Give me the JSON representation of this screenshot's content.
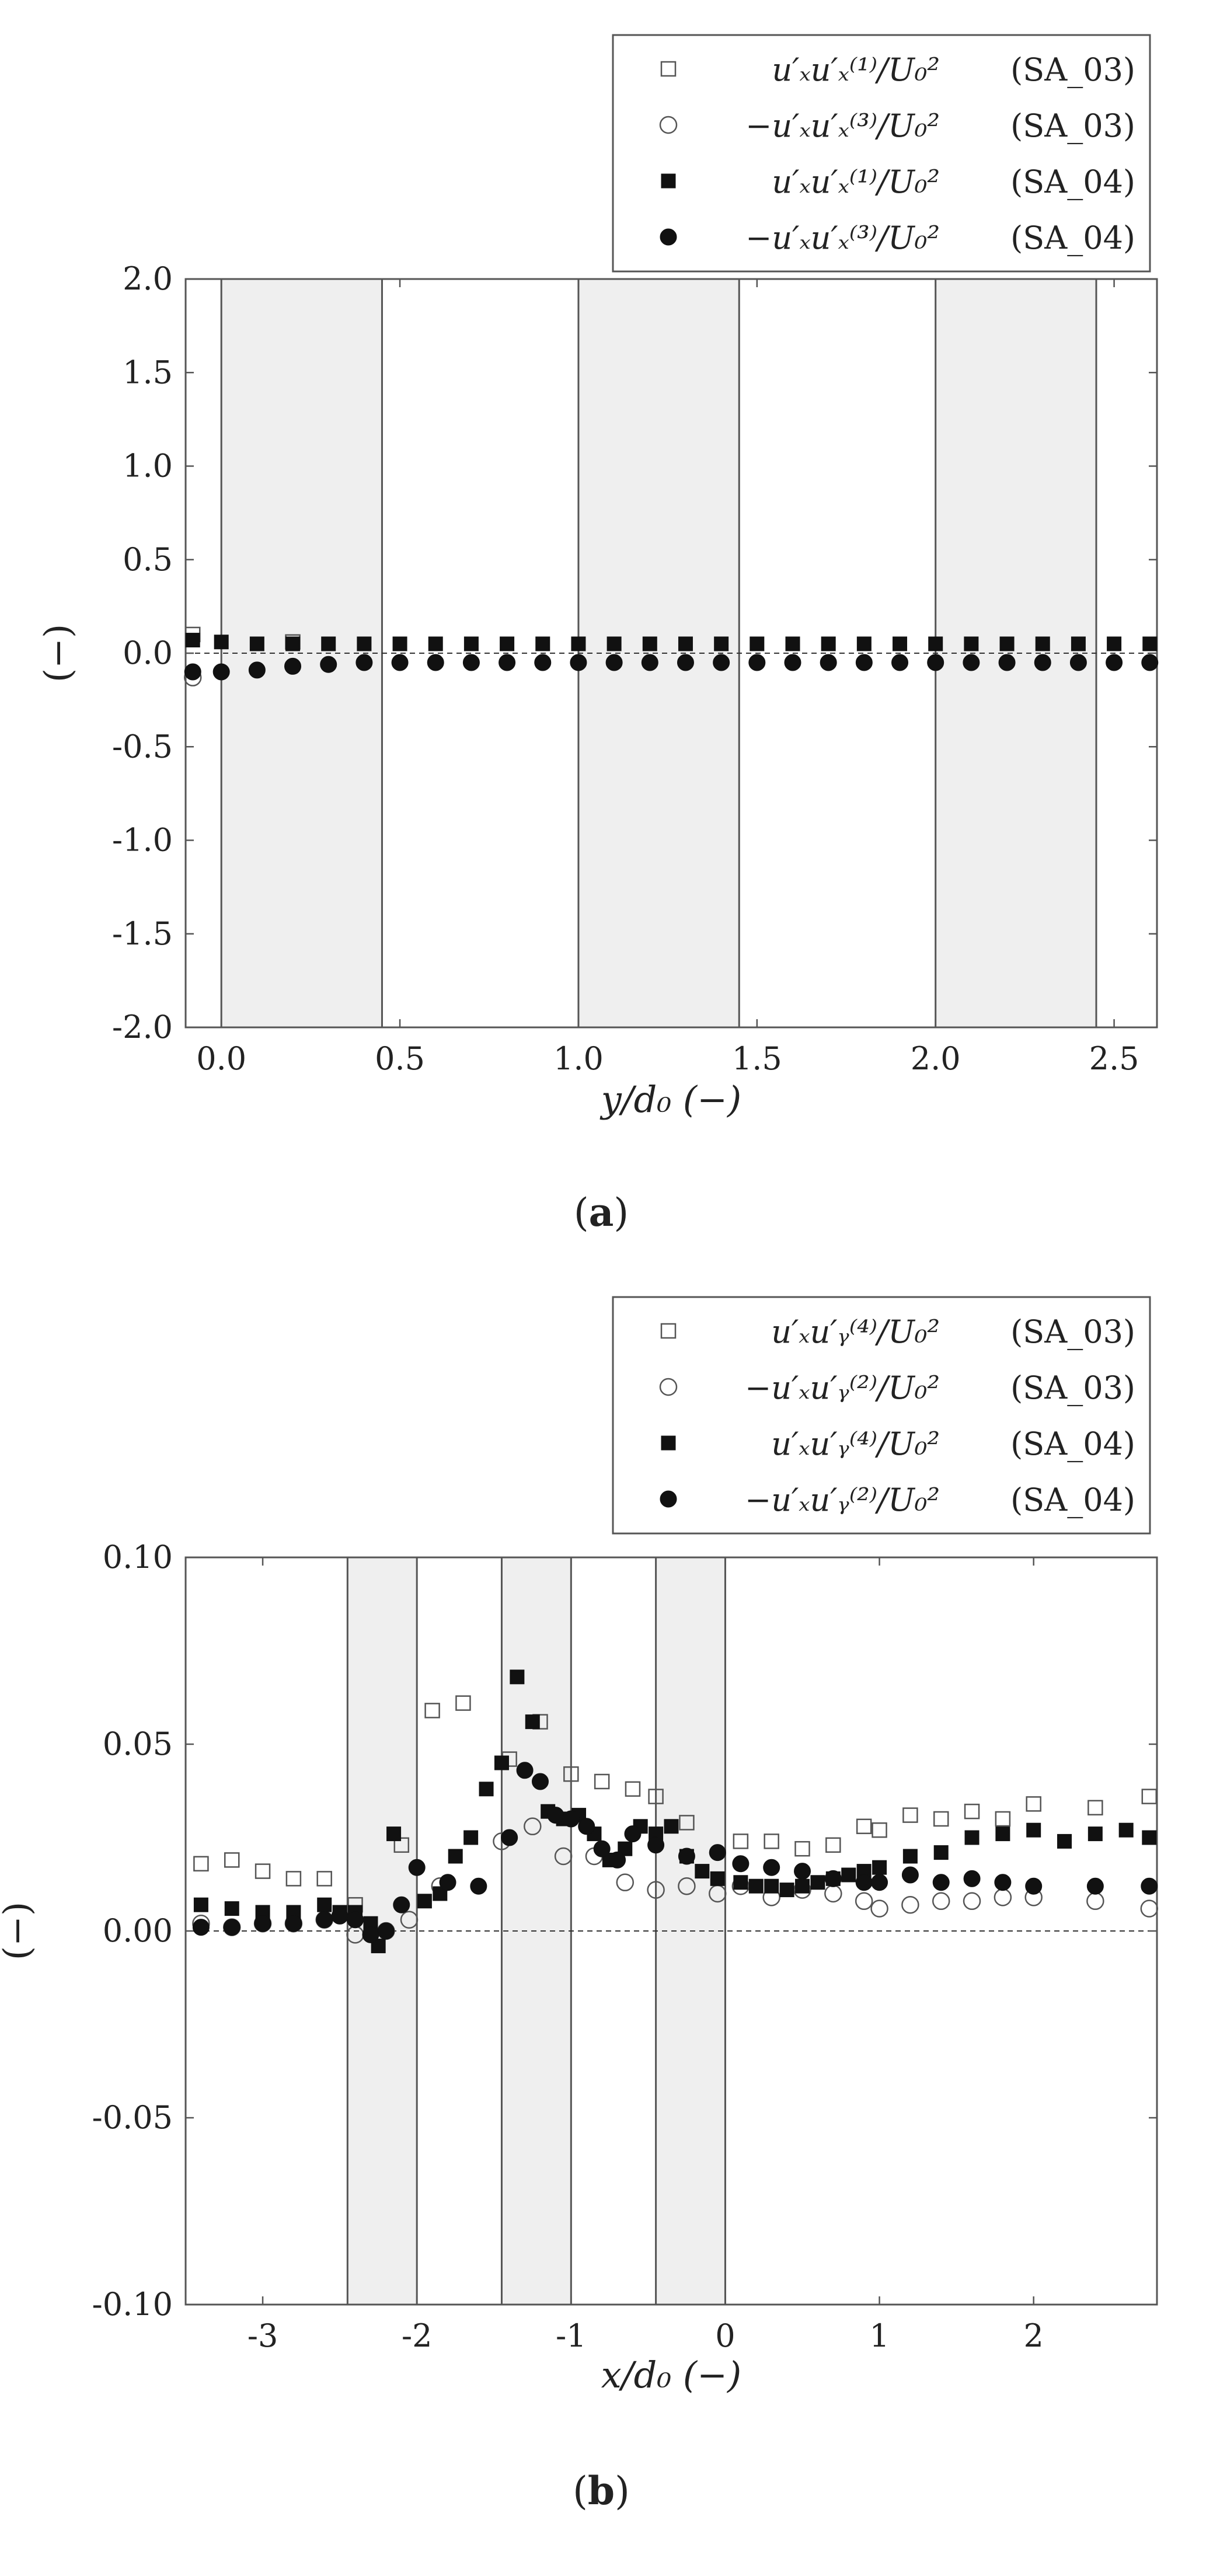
{
  "colors": {
    "shade": "#efefef",
    "ink": "#111111",
    "frame": "#555555"
  },
  "panels": [
    {
      "caption_letter": "a",
      "ylabel": "(−)",
      "xlabel": "y/d₀  (−)",
      "legend": [
        {
          "label": "u′ₓu′ₓ⁽¹⁾/U₀²",
          "case": "(SA_03)",
          "marker": "open-square"
        },
        {
          "label": "−u′ₓu′ₓ⁽³⁾/U₀²",
          "case": "(SA_03)",
          "marker": "open-circle"
        },
        {
          "label": "u′ₓu′ₓ⁽¹⁾/U₀²",
          "case": "(SA_04)",
          "marker": "filled-square"
        },
        {
          "label": "−u′ₓu′ₓ⁽³⁾/U₀²",
          "case": "(SA_04)",
          "marker": "filled-circle"
        }
      ]
    },
    {
      "caption_letter": "b",
      "ylabel": "(−)",
      "xlabel": "x/d₀  (−)",
      "legend": [
        {
          "label": "u′ₓu′ᵧ⁽⁴⁾/U₀²",
          "case": "(SA_03)",
          "marker": "open-square"
        },
        {
          "label": "−u′ₓu′ᵧ⁽²⁾/U₀²",
          "case": "(SA_03)",
          "marker": "open-circle"
        },
        {
          "label": "u′ₓu′ᵧ⁽⁴⁾/U₀²",
          "case": "(SA_04)",
          "marker": "filled-square"
        },
        {
          "label": "−u′ₓu′ᵧ⁽²⁾/U₀²",
          "case": "(SA_04)",
          "marker": "filled-circle"
        }
      ]
    }
  ],
  "chart_data": [
    {
      "type": "scatter",
      "xlabel": "y/d₀  (−)",
      "ylabel": "(−)",
      "xlim": [
        -0.1,
        2.62
      ],
      "ylim": [
        -2.0,
        2.0
      ],
      "xticks": [
        0.0,
        0.5,
        1.0,
        1.5,
        2.0,
        2.5
      ],
      "xtick_labels": [
        "0.0",
        "0.5",
        "1.0",
        "1.5",
        "2.0",
        "2.5"
      ],
      "yticks": [
        2.0,
        1.5,
        1.0,
        0.5,
        0.0,
        -0.5,
        -1.0,
        -1.5,
        -2.0
      ],
      "ytick_labels": [
        "2.0",
        "1.5",
        "1.0",
        "0.5",
        "0.0",
        "-0.5",
        "-1.0",
        "-1.5",
        "-2.0"
      ],
      "shaded_regions": [
        [
          0.0,
          0.45
        ],
        [
          1.0,
          1.45
        ],
        [
          2.0,
          2.45
        ]
      ],
      "reference_line": 0,
      "legend_position": "top-right, above plot",
      "series": [
        {
          "marker": "open-square",
          "x": [
            -0.08,
            0.2
          ],
          "y": [
            0.1,
            0.06
          ]
        },
        {
          "marker": "open-circle",
          "x": [
            -0.08
          ],
          "y": [
            -0.13
          ]
        },
        {
          "marker": "filled-square",
          "x": [
            -0.08,
            0.0,
            0.1,
            0.2,
            0.3,
            0.4,
            0.5,
            0.6,
            0.7,
            0.8,
            0.9,
            1.0,
            1.1,
            1.2,
            1.3,
            1.4,
            1.5,
            1.6,
            1.7,
            1.8,
            1.9,
            2.0,
            2.1,
            2.2,
            2.3,
            2.4,
            2.5,
            2.6
          ],
          "y": [
            0.07,
            0.06,
            0.05,
            0.05,
            0.05,
            0.05,
            0.05,
            0.05,
            0.05,
            0.05,
            0.05,
            0.05,
            0.05,
            0.05,
            0.05,
            0.05,
            0.05,
            0.05,
            0.05,
            0.05,
            0.05,
            0.05,
            0.05,
            0.05,
            0.05,
            0.05,
            0.05,
            0.05
          ]
        },
        {
          "marker": "filled-circle",
          "x": [
            -0.08,
            0.0,
            0.1,
            0.2,
            0.3,
            0.4,
            0.5,
            0.6,
            0.7,
            0.8,
            0.9,
            1.0,
            1.1,
            1.2,
            1.3,
            1.4,
            1.5,
            1.6,
            1.7,
            1.8,
            1.9,
            2.0,
            2.1,
            2.2,
            2.3,
            2.4,
            2.5,
            2.6
          ],
          "y": [
            -0.1,
            -0.1,
            -0.09,
            -0.07,
            -0.06,
            -0.05,
            -0.05,
            -0.05,
            -0.05,
            -0.05,
            -0.05,
            -0.05,
            -0.05,
            -0.05,
            -0.05,
            -0.05,
            -0.05,
            -0.05,
            -0.05,
            -0.05,
            -0.05,
            -0.05,
            -0.05,
            -0.05,
            -0.05,
            -0.05,
            -0.05,
            -0.05
          ]
        }
      ]
    },
    {
      "type": "scatter",
      "xlabel": "x/d₀  (−)",
      "ylabel": "(−)",
      "xlim": [
        -3.5,
        2.8
      ],
      "ylim": [
        -0.1,
        0.1
      ],
      "xticks": [
        -3,
        -2,
        -1,
        0,
        1,
        2
      ],
      "xtick_labels": [
        "-3",
        "-2",
        "-1",
        "0",
        "1",
        "2"
      ],
      "yticks": [
        0.1,
        0.05,
        0.0,
        -0.05,
        -0.1
      ],
      "ytick_labels": [
        "0.10",
        "0.05",
        "0.00",
        "-0.05",
        "-0.10"
      ],
      "shaded_regions": [
        [
          -2.45,
          -2.0
        ],
        [
          -1.45,
          -1.0
        ],
        [
          -0.45,
          0.0
        ]
      ],
      "reference_line": 0,
      "legend_position": "top-right, above plot",
      "series": [
        {
          "marker": "open-square",
          "x": [
            -3.4,
            -3.2,
            -3.0,
            -2.8,
            -2.6,
            -2.4,
            -2.1,
            -1.9,
            -1.7,
            -1.4,
            -1.2,
            -1.0,
            -0.8,
            -0.6,
            -0.45,
            -0.25,
            0.1,
            0.3,
            0.5,
            0.7,
            0.9,
            1.0,
            1.2,
            1.4,
            1.6,
            1.8,
            2.0,
            2.4,
            2.75
          ],
          "y": [
            0.018,
            0.019,
            0.016,
            0.014,
            0.014,
            0.007,
            0.023,
            0.059,
            0.061,
            0.046,
            0.056,
            0.042,
            0.04,
            0.038,
            0.036,
            0.029,
            0.024,
            0.024,
            0.022,
            0.023,
            0.028,
            0.027,
            0.031,
            0.03,
            0.032,
            0.03,
            0.034,
            0.033,
            0.036
          ]
        },
        {
          "marker": "open-circle",
          "x": [
            -3.4,
            -3.2,
            -3.0,
            -2.8,
            -2.6,
            -2.4,
            -2.2,
            -2.05,
            -1.85,
            -1.45,
            -1.25,
            -1.05,
            -0.85,
            -0.65,
            -0.45,
            -0.25,
            -0.05,
            0.1,
            0.3,
            0.5,
            0.7,
            0.9,
            1.0,
            1.2,
            1.4,
            1.6,
            1.8,
            2.0,
            2.4,
            2.75
          ],
          "y": [
            0.002,
            0.001,
            0.002,
            0.002,
            0.003,
            -0.001,
            0.0,
            0.003,
            0.012,
            0.024,
            0.028,
            0.02,
            0.02,
            0.013,
            0.011,
            0.012,
            0.01,
            0.012,
            0.009,
            0.011,
            0.01,
            0.008,
            0.006,
            0.007,
            0.008,
            0.008,
            0.009,
            0.009,
            0.008,
            0.006
          ]
        },
        {
          "marker": "filled-square",
          "x": [
            -3.4,
            -3.2,
            -3.0,
            -2.8,
            -2.6,
            -2.5,
            -2.4,
            -2.3,
            -2.25,
            -2.15,
            -1.95,
            -1.85,
            -1.75,
            -1.65,
            -1.55,
            -1.45,
            -1.35,
            -1.25,
            -1.15,
            -1.05,
            -0.95,
            -0.85,
            -0.75,
            -0.65,
            -0.55,
            -0.45,
            -0.35,
            -0.25,
            -0.15,
            -0.05,
            0.1,
            0.2,
            0.3,
            0.4,
            0.5,
            0.6,
            0.7,
            0.8,
            0.9,
            1.0,
            1.2,
            1.4,
            1.6,
            1.8,
            2.0,
            2.2,
            2.4,
            2.6,
            2.75
          ],
          "y": [
            0.007,
            0.006,
            0.005,
            0.005,
            0.007,
            0.005,
            0.005,
            0.002,
            -0.004,
            0.026,
            0.008,
            0.01,
            0.02,
            0.025,
            0.038,
            0.045,
            0.068,
            0.056,
            0.032,
            0.03,
            0.031,
            0.026,
            0.019,
            0.022,
            0.028,
            0.026,
            0.028,
            0.02,
            0.016,
            0.014,
            0.013,
            0.012,
            0.012,
            0.011,
            0.012,
            0.013,
            0.014,
            0.015,
            0.016,
            0.017,
            0.02,
            0.021,
            0.025,
            0.026,
            0.027,
            0.024,
            0.026,
            0.027,
            0.025
          ]
        },
        {
          "marker": "filled-circle",
          "x": [
            -3.4,
            -3.2,
            -3.0,
            -2.8,
            -2.6,
            -2.5,
            -2.4,
            -2.3,
            -2.2,
            -2.1,
            -2.0,
            -1.8,
            -1.6,
            -1.4,
            -1.3,
            -1.2,
            -1.1,
            -1.0,
            -0.9,
            -0.8,
            -0.7,
            -0.6,
            -0.45,
            -0.25,
            -0.05,
            0.1,
            0.3,
            0.5,
            0.7,
            0.9,
            1.0,
            1.2,
            1.4,
            1.6,
            1.8,
            2.0,
            2.4,
            2.75
          ],
          "y": [
            0.001,
            0.001,
            0.002,
            0.002,
            0.003,
            0.004,
            0.003,
            -0.001,
            0.0,
            0.007,
            0.017,
            0.013,
            0.012,
            0.025,
            0.043,
            0.04,
            0.031,
            0.03,
            0.028,
            0.022,
            0.019,
            0.026,
            0.023,
            0.02,
            0.021,
            0.018,
            0.017,
            0.016,
            0.014,
            0.013,
            0.013,
            0.015,
            0.013,
            0.014,
            0.013,
            0.012,
            0.012,
            0.012
          ]
        }
      ]
    }
  ]
}
